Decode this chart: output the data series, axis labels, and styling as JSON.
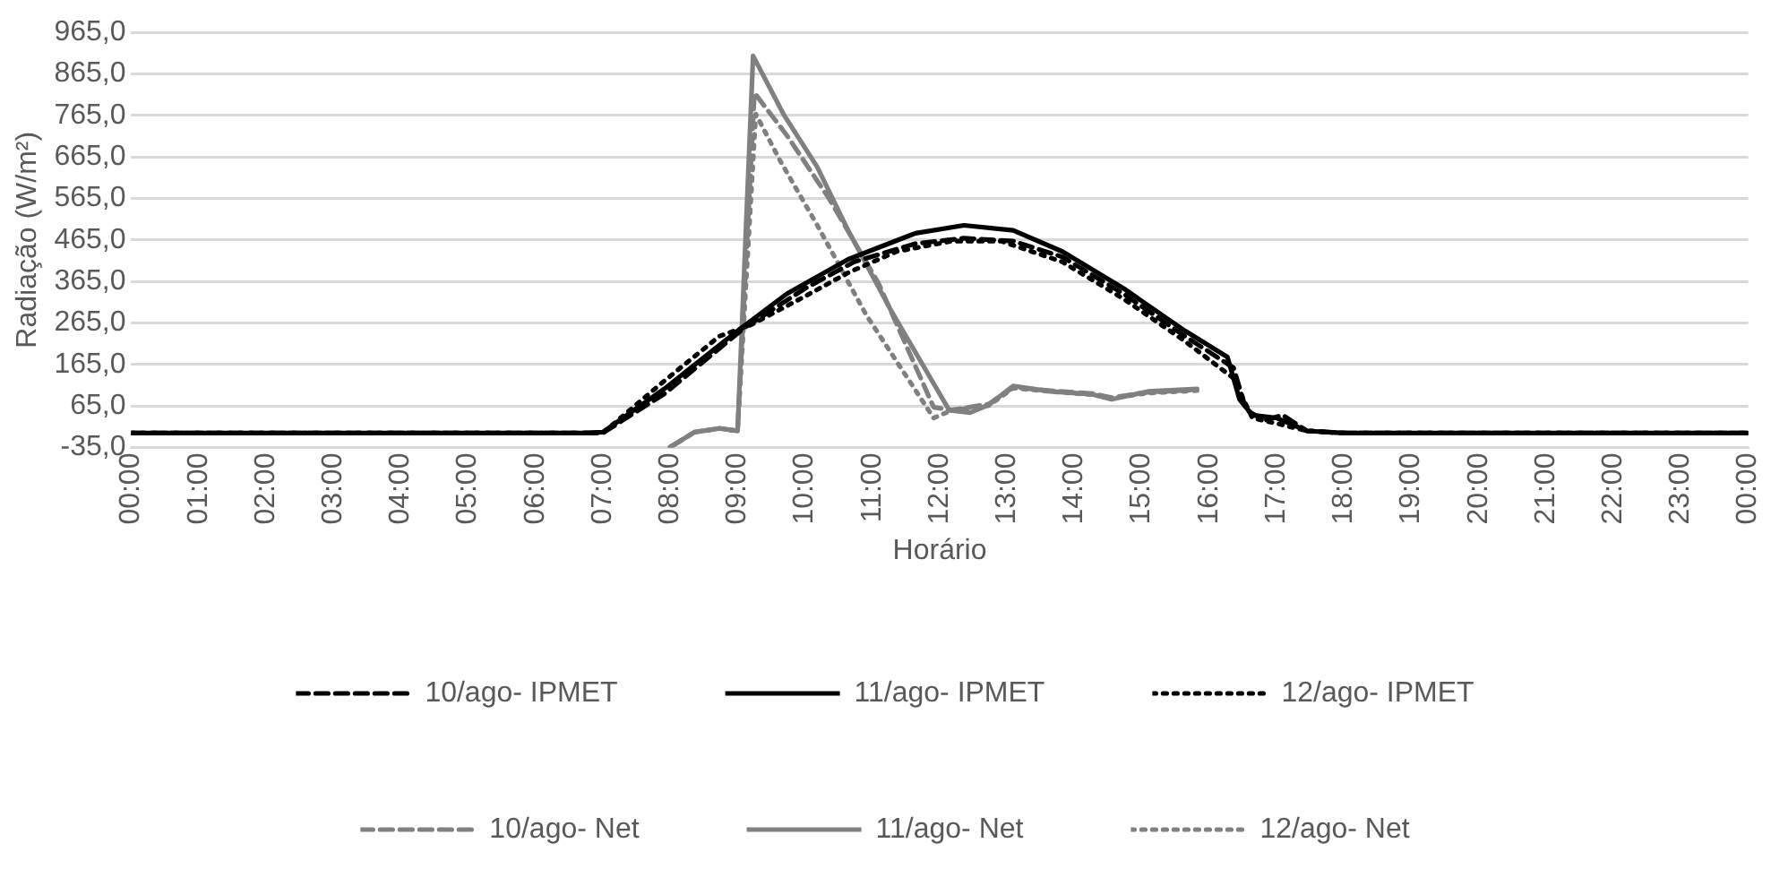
{
  "chart_data": {
    "type": "line",
    "xlabel": "Horário",
    "ylabel": "Radiação (W/m²)",
    "xlim": [
      0,
      24
    ],
    "ylim": [
      -35,
      965
    ],
    "xticks": [
      {
        "value": 0,
        "label": "00:00"
      },
      {
        "value": 1,
        "label": "01:00"
      },
      {
        "value": 2,
        "label": "02:00"
      },
      {
        "value": 3,
        "label": "03:00"
      },
      {
        "value": 4,
        "label": "04:00"
      },
      {
        "value": 5,
        "label": "05:00"
      },
      {
        "value": 6,
        "label": "06:00"
      },
      {
        "value": 7,
        "label": "07:00"
      },
      {
        "value": 8,
        "label": "08:00"
      },
      {
        "value": 9,
        "label": "09:00"
      },
      {
        "value": 10,
        "label": "10:00"
      },
      {
        "value": 11,
        "label": "11:00"
      },
      {
        "value": 12,
        "label": "12:00"
      },
      {
        "value": 13,
        "label": "13:00"
      },
      {
        "value": 14,
        "label": "14:00"
      },
      {
        "value": 15,
        "label": "15:00"
      },
      {
        "value": 16,
        "label": "16:00"
      },
      {
        "value": 17,
        "label": "17:00"
      },
      {
        "value": 18,
        "label": "18:00"
      },
      {
        "value": 19,
        "label": "19:00"
      },
      {
        "value": 20,
        "label": "20:00"
      },
      {
        "value": 21,
        "label": "21:00"
      },
      {
        "value": 22,
        "label": "22:00"
      },
      {
        "value": 23,
        "label": "23:00"
      },
      {
        "value": 24,
        "label": "00:00"
      }
    ],
    "yticks": [
      {
        "value": -35,
        "label": "-35,0"
      },
      {
        "value": 65,
        "label": "65,0"
      },
      {
        "value": 165,
        "label": "165,0"
      },
      {
        "value": 265,
        "label": "265,0"
      },
      {
        "value": 365,
        "label": "365,0"
      },
      {
        "value": 465,
        "label": "465,0"
      },
      {
        "value": 565,
        "label": "565,0"
      },
      {
        "value": 665,
        "label": "665,0"
      },
      {
        "value": 765,
        "label": "765,0"
      },
      {
        "value": 865,
        "label": "865,0"
      },
      {
        "value": 965,
        "label": "965,0"
      }
    ],
    "grid": "y",
    "legend": "bottom",
    "marker": "none",
    "series": [
      {
        "name": "10/ago- IPMET",
        "color": "#000000",
        "line_style": "dashed",
        "x": [
          0,
          6.7,
          7.0,
          7.91,
          9.09,
          10.0,
          10.73,
          11.64,
          12.36,
          13.09,
          13.82,
          14.73,
          15.64,
          16.36,
          16.55,
          16.82,
          17.09,
          17.45,
          18.0,
          24
        ],
        "values": [
          0,
          0,
          0,
          94,
          252,
          348,
          412,
          456,
          469,
          462,
          424,
          335,
          233,
          157,
          55,
          30,
          43,
          5,
          0,
          0
        ]
      },
      {
        "name": "11/ago- IPMET",
        "color": "#000000",
        "line_style": "solid",
        "x": [
          0,
          6.7,
          7.0,
          7.91,
          9.0,
          9.73,
          10.64,
          11.64,
          12.36,
          13.09,
          13.82,
          14.73,
          15.64,
          16.27,
          16.45,
          16.64,
          17.0,
          17.45,
          18.0,
          24
        ],
        "values": [
          0,
          0,
          2,
          106,
          246,
          335,
          418,
          481,
          500,
          488,
          437,
          348,
          246,
          183,
          81,
          43,
          36,
          5,
          0,
          0
        ]
      },
      {
        "name": "12/ago- IPMET",
        "color": "#000000",
        "line_style": "dotted",
        "x": [
          0,
          6.7,
          7.0,
          7.91,
          8.73,
          9.18,
          10.0,
          10.64,
          11.36,
          12.18,
          12.91,
          13.82,
          14.73,
          15.64,
          16.36,
          16.64,
          17.0,
          17.45,
          18.0,
          24
        ],
        "values": [
          0,
          0,
          0,
          125,
          233,
          259,
          329,
          386,
          437,
          462,
          462,
          412,
          323,
          221,
          132,
          36,
          23,
          5,
          0,
          0
        ]
      },
      {
        "name": "10/ago- Net",
        "color": "#808080",
        "line_style": "dashed",
        "x": [
          8.0,
          8.36,
          8.73,
          9.0,
          9.25,
          9.73,
          10.36,
          11.09,
          11.91,
          12.18,
          12.73,
          13.09,
          13.64,
          14.27,
          14.55,
          15.09,
          15.82
        ],
        "values": [
          -34,
          2,
          11,
          5,
          819,
          717,
          564,
          361,
          62,
          55,
          70,
          110,
          102,
          95,
          85,
          98,
          104
        ]
      },
      {
        "name": "11/ago- Net",
        "color": "#808080",
        "line_style": "solid",
        "x": [
          8.0,
          8.36,
          8.73,
          9.0,
          9.23,
          9.68,
          10.18,
          10.64,
          11.27,
          12.14,
          12.45,
          12.73,
          13.09,
          13.64,
          14.27,
          14.55,
          15.09,
          15.82
        ],
        "values": [
          -34,
          2,
          11,
          5,
          908,
          768,
          641,
          488,
          297,
          55,
          49,
          68,
          113,
          100,
          93,
          81,
          100,
          106
        ]
      },
      {
        "name": "12/ago- Net",
        "color": "#808080",
        "line_style": "dotted",
        "x": [
          8.0,
          8.36,
          8.73,
          9.0,
          9.27,
          9.64,
          10.18,
          10.91,
          11.91,
          12.18,
          12.73,
          13.09,
          13.64,
          14.27,
          14.55,
          15.09,
          15.82
        ],
        "values": [
          -34,
          2,
          11,
          5,
          768,
          653,
          501,
          284,
          36,
          55,
          66,
          108,
          100,
          92,
          84,
          96,
          102
        ]
      }
    ]
  }
}
